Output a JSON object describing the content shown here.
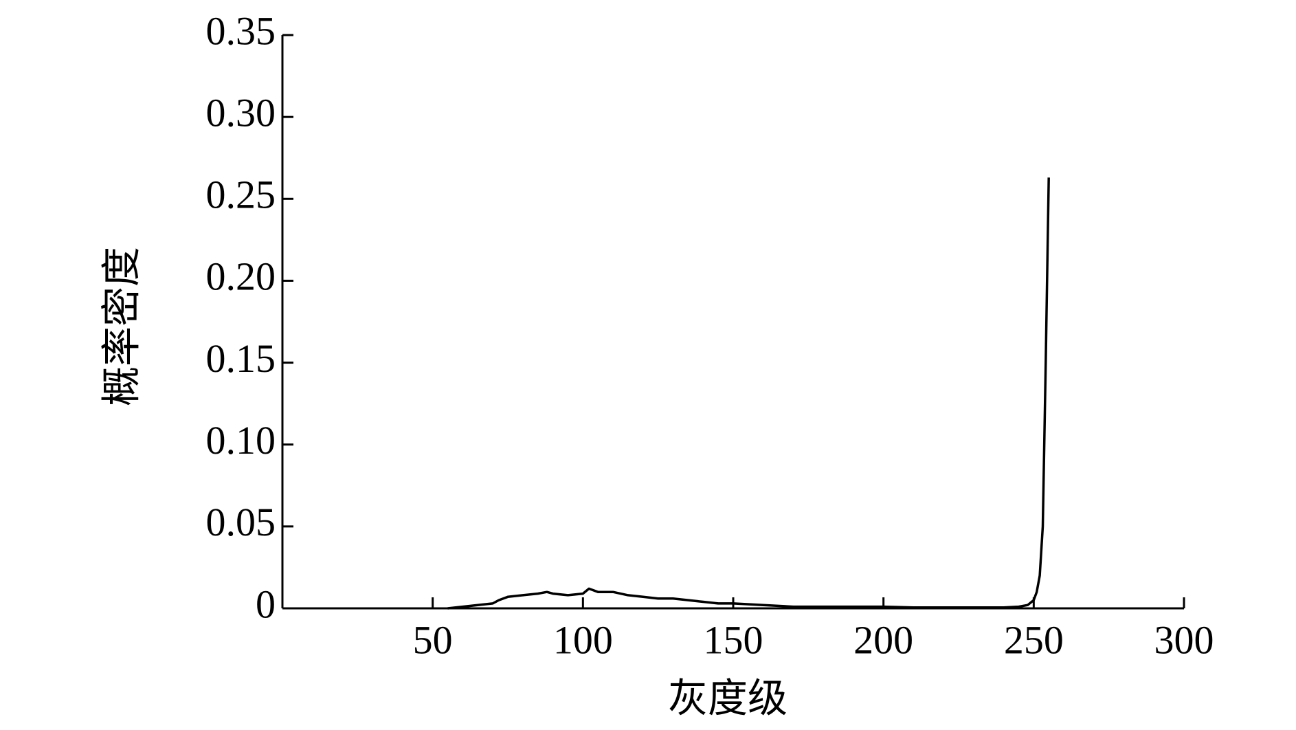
{
  "chart_data": {
    "type": "line",
    "xlabel": "灰度级",
    "ylabel": "概率密度",
    "color": "#000000",
    "x": [
      55,
      60,
      65,
      70,
      72,
      75,
      80,
      85,
      88,
      90,
      95,
      100,
      102,
      105,
      110,
      115,
      120,
      125,
      130,
      135,
      140,
      145,
      150,
      160,
      170,
      180,
      190,
      200,
      210,
      220,
      230,
      240,
      245,
      248,
      250,
      251,
      252,
      253,
      254,
      255
    ],
    "values": [
      0,
      0.001,
      0.002,
      0.003,
      0.005,
      0.007,
      0.008,
      0.009,
      0.01,
      0.009,
      0.008,
      0.009,
      0.012,
      0.01,
      0.01,
      0.008,
      0.007,
      0.006,
      0.006,
      0.005,
      0.004,
      0.003,
      0.003,
      0.002,
      0.001,
      0.001,
      0.001,
      0.001,
      0.0005,
      0.0005,
      0.0005,
      0.0005,
      0.001,
      0.002,
      0.005,
      0.01,
      0.02,
      0.05,
      0.15,
      0.263
    ],
    "xlim": [
      0,
      300
    ],
    "xticks": [
      50,
      100,
      150,
      200,
      250,
      300
    ],
    "ylim": [
      0,
      0.35
    ],
    "yticks": [
      0,
      0.05,
      {
        "value": 0.1,
        "label": "0.10"
      },
      0.15,
      {
        "value": 0.2,
        "label": "0.20"
      },
      0.25,
      {
        "value": 0.3,
        "label": "0.30"
      },
      0.35
    ],
    "grid": false
  }
}
